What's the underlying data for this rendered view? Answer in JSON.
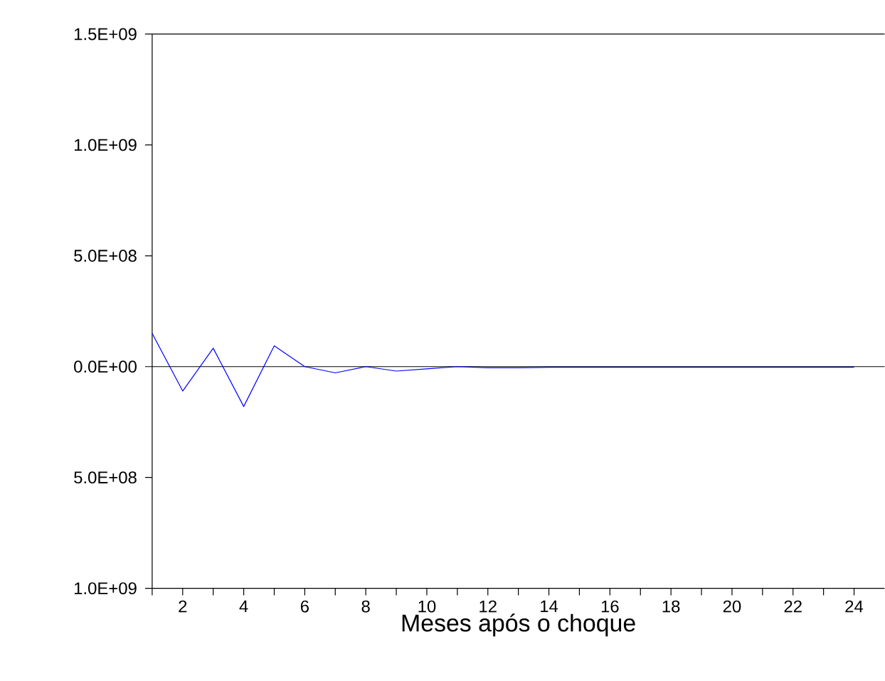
{
  "chart_data": {
    "type": "line",
    "xlabel": "Meses após o choque",
    "x": [
      1,
      2,
      3,
      4,
      5,
      6,
      7,
      8,
      9,
      10,
      11,
      12,
      13,
      14,
      15,
      16,
      17,
      18,
      19,
      20,
      21,
      22,
      23,
      24
    ],
    "series": [
      {
        "color": "#0000ff",
        "values": [
          150000000,
          -110000000,
          83000000,
          -180000000,
          94000000,
          0,
          -28000000,
          0,
          -20000000,
          -10000000,
          0,
          -5000000,
          -5000000,
          -3000000,
          -3000000,
          -3000000,
          -3000000,
          -3000000,
          -3000000,
          -3000000,
          -3000000,
          -3000000,
          -3000000,
          -3000000
        ]
      }
    ],
    "xlim": [
      1,
      25
    ],
    "xticks": [
      {
        "value": 1,
        "label": null
      },
      2,
      {
        "value": 3,
        "label": null
      },
      4,
      {
        "value": 5,
        "label": null
      },
      6,
      {
        "value": 7,
        "label": null
      },
      8,
      {
        "value": 9,
        "label": null
      },
      10,
      {
        "value": 11,
        "label": null
      },
      12,
      {
        "value": 13,
        "label": null
      },
      14,
      {
        "value": 15,
        "label": null
      },
      16,
      {
        "value": 17,
        "label": null
      },
      18,
      {
        "value": 19,
        "label": null
      },
      20,
      {
        "value": 21,
        "label": null
      },
      22,
      {
        "value": 23,
        "label": null
      },
      24
    ],
    "ylim": [
      -1000000000,
      1500000000
    ],
    "yticks": [
      {
        "value": -1000000000,
        "label": "1.0E+09"
      },
      {
        "value": -500000000,
        "label": "5.0E+08"
      },
      {
        "value": 0,
        "label": "0.0E+00"
      },
      {
        "value": 500000000,
        "label": "5.0E+08"
      },
      {
        "value": 1000000000,
        "label": "1.0E+09"
      },
      {
        "value": 1500000000,
        "label": "1.5E+09"
      }
    ],
    "ref_lines": [
      {
        "axis": "y",
        "value": 0,
        "color": "#000000"
      }
    ],
    "grid": false,
    "legend": false,
    "marker": "none",
    "line_style": "solid"
  }
}
